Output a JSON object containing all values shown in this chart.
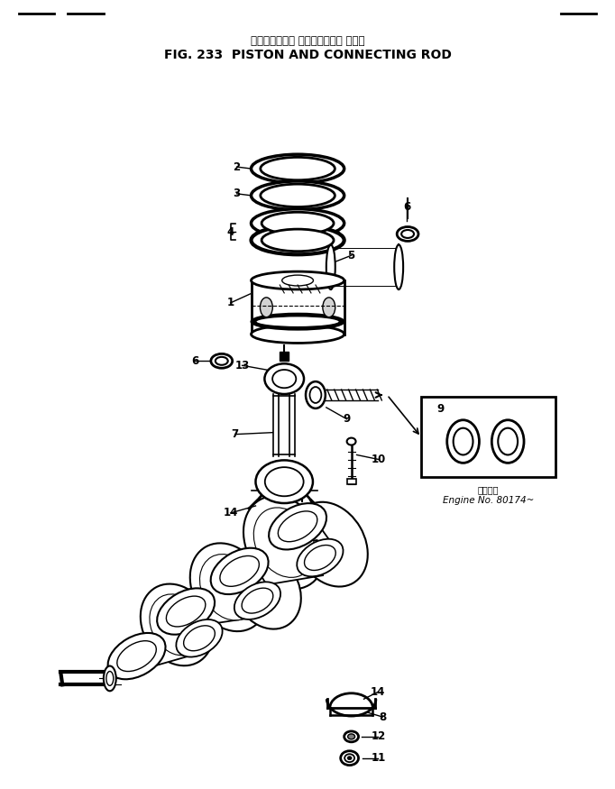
{
  "title_jp": "ピストンおよび コネクティング ロッド",
  "title_en": "FIG. 233  PISTON AND CONNECTING ROD",
  "bg_color": "#ffffff",
  "line_color": "#000000",
  "fig_width": 6.82,
  "fig_height": 8.75,
  "dpi": 100,
  "inset_label_jp": "適用号番",
  "inset_label_en": "Engine No. 80174~"
}
